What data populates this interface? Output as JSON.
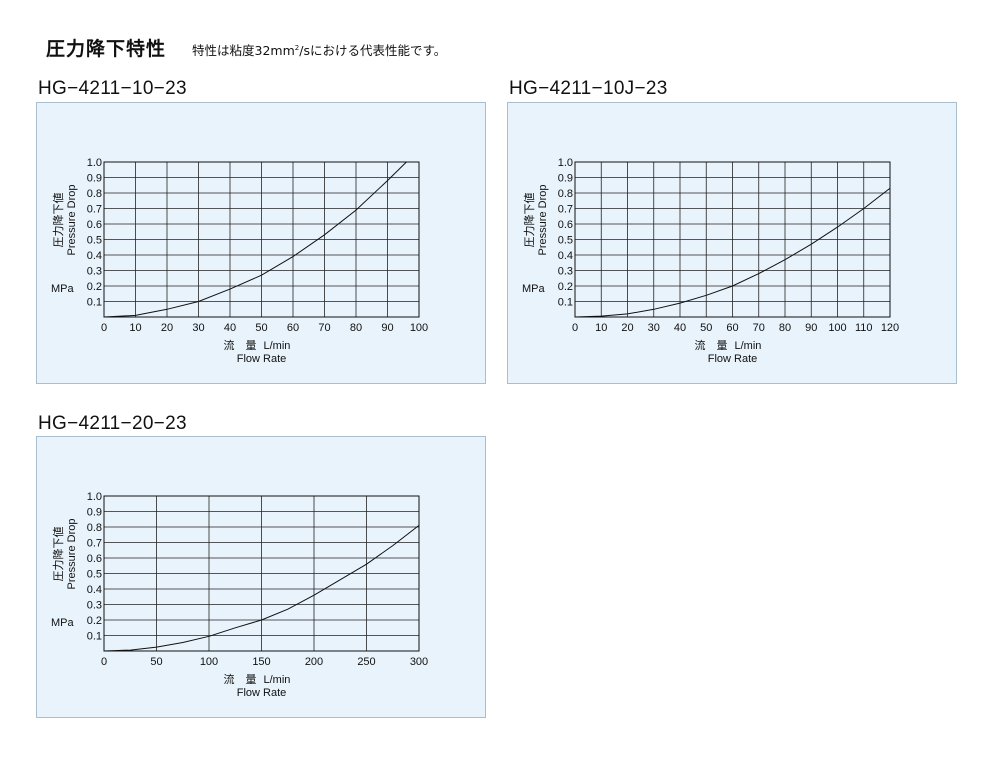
{
  "header": {
    "title": "圧力降下特性",
    "subtitle_pre": "特性は粘度32mm",
    "subtitle_sup": "2",
    "subtitle_post": "/sにおける代表性能です。"
  },
  "chart_data": [
    {
      "type": "line",
      "title": "HG−4211−10−23",
      "ylabel_jp": "圧力降下値",
      "ylabel_en": "Pressure Drop",
      "yunit": "MPa",
      "xlabel_jp": "流　量",
      "xlabel_unit": "L/min",
      "xlabel_en": "Flow Rate",
      "xlim": [
        0,
        100
      ],
      "ylim": [
        0,
        1.0
      ],
      "xticks": [
        0,
        10,
        20,
        30,
        40,
        50,
        60,
        70,
        80,
        90,
        100
      ],
      "yticks": [
        0.1,
        0.2,
        0.3,
        0.4,
        0.5,
        0.6,
        0.7,
        0.8,
        0.9,
        1.0
      ],
      "grid": true,
      "series": [
        {
          "x": [
            0,
            10,
            20,
            30,
            40,
            50,
            60,
            70,
            80,
            90,
            96
          ],
          "y": [
            0,
            0.01,
            0.05,
            0.1,
            0.18,
            0.27,
            0.39,
            0.53,
            0.69,
            0.88,
            1.0
          ]
        }
      ]
    },
    {
      "type": "line",
      "title": "HG−4211−10J−23",
      "ylabel_jp": "圧力降下値",
      "ylabel_en": "Pressure Drop",
      "yunit": "MPa",
      "xlabel_jp": "流　量",
      "xlabel_unit": "L/min",
      "xlabel_en": "Flow Rate",
      "xlim": [
        0,
        120
      ],
      "ylim": [
        0,
        1.0
      ],
      "xticks": [
        0,
        10,
        20,
        30,
        40,
        50,
        60,
        70,
        80,
        90,
        100,
        110,
        120
      ],
      "yticks": [
        0.1,
        0.2,
        0.3,
        0.4,
        0.5,
        0.6,
        0.7,
        0.8,
        0.9,
        1.0
      ],
      "grid": true,
      "series": [
        {
          "x": [
            0,
            10,
            20,
            30,
            40,
            50,
            60,
            70,
            80,
            90,
            100,
            110,
            120
          ],
          "y": [
            0,
            0.006,
            0.02,
            0.05,
            0.09,
            0.14,
            0.2,
            0.28,
            0.37,
            0.47,
            0.58,
            0.7,
            0.83
          ]
        }
      ]
    },
    {
      "type": "line",
      "title": "HG−4211−20−23",
      "ylabel_jp": "圧力降下値",
      "ylabel_en": "Pressure Drop",
      "yunit": "MPa",
      "xlabel_jp": "流　量",
      "xlabel_unit": "L/min",
      "xlabel_en": "Flow Rate",
      "xlim": [
        0,
        300
      ],
      "ylim": [
        0,
        1.0
      ],
      "xticks": [
        0,
        50,
        100,
        150,
        200,
        250,
        300
      ],
      "yticks": [
        0.1,
        0.2,
        0.3,
        0.4,
        0.5,
        0.6,
        0.7,
        0.8,
        0.9,
        1.0
      ],
      "grid": true,
      "series": [
        {
          "x": [
            0,
            25,
            50,
            75,
            100,
            125,
            150,
            175,
            200,
            225,
            250,
            275,
            300
          ],
          "y": [
            0,
            0.006,
            0.025,
            0.055,
            0.095,
            0.15,
            0.2,
            0.27,
            0.36,
            0.46,
            0.56,
            0.68,
            0.81
          ]
        }
      ]
    }
  ]
}
